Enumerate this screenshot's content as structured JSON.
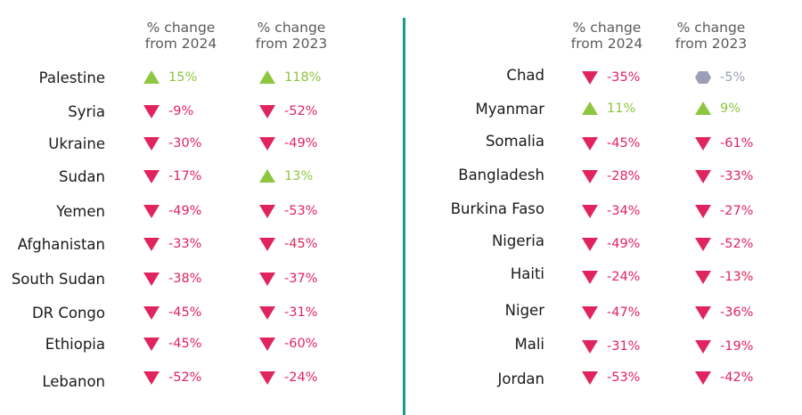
{
  "chart_data": {
    "type": "table",
    "colors": {
      "down": "#e0245e",
      "up": "#8dc63f",
      "neutral": "#9b9fb8",
      "divider": "#1a9a8c"
    },
    "headers": [
      {
        "line1": "% change",
        "line2": "from 2024"
      },
      {
        "line1": "% change",
        "line2": "from 2023"
      }
    ],
    "tables": [
      {
        "rows": [
          {
            "country": "Palestine",
            "change_2024": 15,
            "label_2024": "15%",
            "change_2023": 118,
            "label_2023": "118%"
          },
          {
            "country": "Syria",
            "change_2024": -9,
            "label_2024": "-9%",
            "change_2023": -52,
            "label_2023": "-52%"
          },
          {
            "country": "Ukraine",
            "change_2024": -30,
            "label_2024": "-30%",
            "change_2023": -49,
            "label_2023": "-49%"
          },
          {
            "country": "Sudan",
            "change_2024": -17,
            "label_2024": "-17%",
            "change_2023": 13,
            "label_2023": "13%"
          },
          {
            "country": "Yemen",
            "change_2024": -49,
            "label_2024": "-49%",
            "change_2023": -53,
            "label_2023": "-53%"
          },
          {
            "country": "Afghanistan",
            "change_2024": -33,
            "label_2024": "-33%",
            "change_2023": -45,
            "label_2023": "-45%"
          },
          {
            "country": "South Sudan",
            "change_2024": -38,
            "label_2024": "-38%",
            "change_2023": -37,
            "label_2023": "-37%"
          },
          {
            "country": "DR Congo",
            "change_2024": -45,
            "label_2024": "-45%",
            "change_2023": -31,
            "label_2023": "-31%"
          },
          {
            "country": "Ethiopia",
            "change_2024": -45,
            "label_2024": "-45%",
            "change_2023": -60,
            "label_2023": "-60%"
          },
          {
            "country": "Lebanon",
            "change_2024": -52,
            "label_2024": "-52%",
            "change_2023": -24,
            "label_2023": "-24%"
          }
        ]
      },
      {
        "rows": [
          {
            "country": "Chad",
            "change_2024": -35,
            "label_2024": "-35%",
            "change_2023": -5,
            "label_2023": "-5%",
            "marker_2023": "neutral"
          },
          {
            "country": "Myanmar",
            "change_2024": 11,
            "label_2024": "11%",
            "change_2023": 9,
            "label_2023": "9%"
          },
          {
            "country": "Somalia",
            "change_2024": -45,
            "label_2024": "-45%",
            "change_2023": -61,
            "label_2023": "-61%"
          },
          {
            "country": "Bangladesh",
            "change_2024": -28,
            "label_2024": "-28%",
            "change_2023": -33,
            "label_2023": "-33%"
          },
          {
            "country": "Burkina Faso",
            "change_2024": -34,
            "label_2024": "-34%",
            "change_2023": -27,
            "label_2023": "-27%"
          },
          {
            "country": "Nigeria",
            "change_2024": -49,
            "label_2024": "-49%",
            "change_2023": -52,
            "label_2023": "-52%"
          },
          {
            "country": "Haiti",
            "change_2024": -24,
            "label_2024": "-24%",
            "change_2023": -13,
            "label_2023": "-13%"
          },
          {
            "country": "Niger",
            "change_2024": -47,
            "label_2024": "-47%",
            "change_2023": -36,
            "label_2023": "-36%"
          },
          {
            "country": "Mali",
            "change_2024": -31,
            "label_2024": "-31%",
            "change_2023": -19,
            "label_2023": "-19%"
          },
          {
            "country": "Jordan",
            "change_2024": -53,
            "label_2024": "-53%",
            "change_2023": -42,
            "label_2023": "-42%"
          }
        ]
      }
    ]
  }
}
